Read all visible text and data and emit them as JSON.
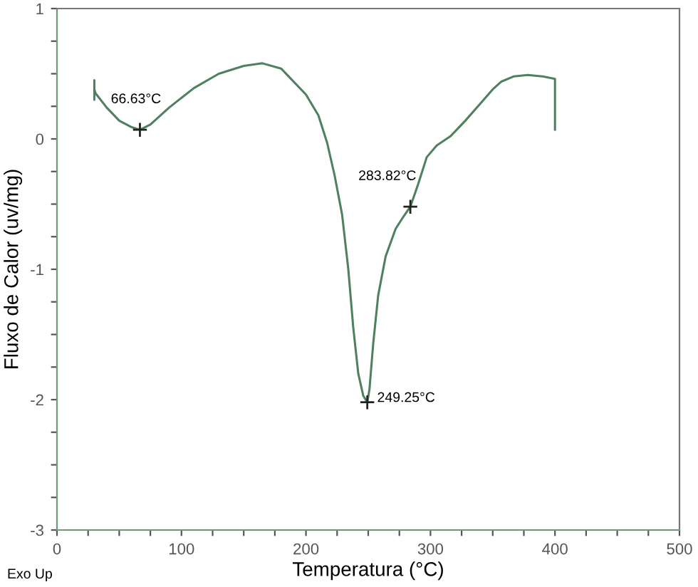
{
  "chart_data": {
    "type": "line",
    "xlabel": "Temperatura (°C)",
    "ylabel": "Fluxo de Calor (uv/mg)",
    "series": [
      {
        "color": "#4f8060",
        "x": [
          30,
          30,
          30,
          31,
          40,
          50,
          60,
          66.63,
          75,
          90,
          110,
          130,
          150,
          165,
          180,
          200,
          210,
          217,
          223,
          229,
          234,
          238,
          242,
          246,
          249.25,
          251,
          254,
          258,
          264,
          272,
          278,
          283.82,
          290,
          297,
          305,
          316,
          328,
          340,
          350,
          357,
          367,
          378,
          390,
          400,
          400
        ],
        "values": [
          0.45,
          0.3,
          0.38,
          0.35,
          0.24,
          0.14,
          0.09,
          0.07,
          0.11,
          0.24,
          0.39,
          0.5,
          0.56,
          0.58,
          0.54,
          0.34,
          0.18,
          -0.03,
          -0.28,
          -0.58,
          -1.0,
          -1.45,
          -1.8,
          -1.97,
          -2.02,
          -1.92,
          -1.57,
          -1.2,
          -0.9,
          -0.69,
          -0.6,
          -0.52,
          -0.35,
          -0.14,
          -0.05,
          0.02,
          0.14,
          0.27,
          0.38,
          0.44,
          0.48,
          0.49,
          0.48,
          0.46,
          0.07
        ]
      }
    ],
    "xlim": [
      0,
      500
    ],
    "ylim": [
      -3,
      1
    ],
    "xticks": [
      0,
      {
        "value": 25,
        "label": null
      },
      {
        "value": 50,
        "label": null
      },
      {
        "value": 75,
        "label": null
      },
      100,
      {
        "value": 125,
        "label": null
      },
      {
        "value": 150,
        "label": null
      },
      {
        "value": 175,
        "label": null
      },
      200,
      {
        "value": 225,
        "label": null
      },
      {
        "value": 250,
        "label": null
      },
      {
        "value": 275,
        "label": null
      },
      300,
      {
        "value": 325,
        "label": null
      },
      {
        "value": 350,
        "label": null
      },
      {
        "value": 375,
        "label": null
      },
      400,
      {
        "value": 425,
        "label": null
      },
      {
        "value": 450,
        "label": null
      },
      {
        "value": 475,
        "label": null
      },
      500
    ],
    "yticks": [
      -3,
      {
        "value": -2.75,
        "label": null
      },
      {
        "value": -2.5,
        "label": null
      },
      {
        "value": -2.25,
        "label": null
      },
      -2,
      {
        "value": -1.75,
        "label": null
      },
      {
        "value": -1.5,
        "label": null
      },
      {
        "value": -1.25,
        "label": null
      },
      -1,
      {
        "value": -0.75,
        "label": null
      },
      {
        "value": -0.5,
        "label": null
      },
      {
        "value": -0.25,
        "label": null
      },
      0,
      {
        "value": 0.25,
        "label": null
      },
      {
        "value": 0.5,
        "label": null
      },
      {
        "value": 0.75,
        "label": null
      },
      1
    ],
    "annotations": [
      {
        "text": "66.63°C",
        "x": 66.63,
        "y": 0.07
      },
      {
        "text": "249.25°C",
        "x": 249.25,
        "y": -2.02
      },
      {
        "text": "283.82°C",
        "x": 283.82,
        "y": -0.52
      },
      "Exo Up"
    ],
    "grid": false,
    "legend": false
  }
}
